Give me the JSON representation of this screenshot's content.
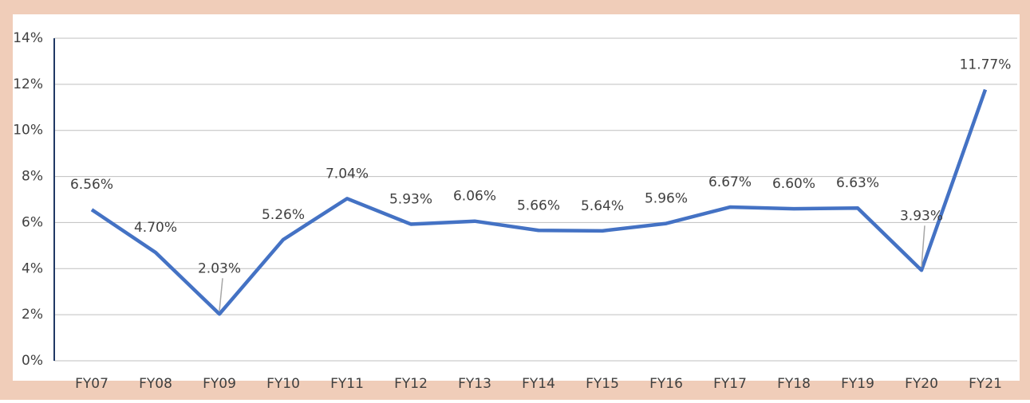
{
  "chart_data": {
    "type": "line",
    "categories": [
      "FY07",
      "FY08",
      "FY09",
      "FY10",
      "FY11",
      "FY12",
      "FY13",
      "FY14",
      "FY15",
      "FY16",
      "FY17",
      "FY18",
      "FY19",
      "FY20",
      "FY21"
    ],
    "series": [
      {
        "color": "#4472c4",
        "values": [
          6.56,
          4.7,
          2.03,
          5.26,
          7.04,
          5.93,
          6.06,
          5.66,
          5.64,
          5.96,
          6.67,
          6.6,
          6.63,
          3.93,
          11.77
        ],
        "value_labels": [
          "6.56%",
          "4.70%",
          "2.03%",
          "5.26%",
          "7.04%",
          "5.93%",
          "6.06%",
          "5.66%",
          "5.64%",
          "5.96%",
          "6.67%",
          "6.60%",
          "6.63%",
          "3.93%",
          "11.77%"
        ]
      }
    ],
    "ylim": [
      0,
      14
    ],
    "yticks": [
      {
        "value": 0,
        "label": "0%"
      },
      {
        "value": 2,
        "label": "2%"
      },
      {
        "value": 4,
        "label": "4%"
      },
      {
        "value": 6,
        "label": "6%"
      },
      {
        "value": 8,
        "label": "8%"
      },
      {
        "value": 10,
        "label": "10%"
      },
      {
        "value": 12,
        "label": "12%"
      },
      {
        "value": 14,
        "label": "14%"
      }
    ],
    "grid": true
  }
}
